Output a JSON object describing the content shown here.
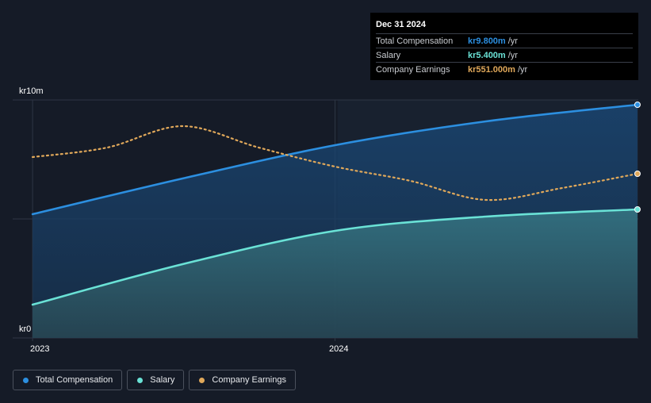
{
  "colors": {
    "total": "#2c8fe0",
    "salary": "#6ae2d6",
    "earnings": "#e0a85a",
    "background": "#151b27"
  },
  "tooltip": {
    "date": "Dec 31 2024",
    "rows": [
      {
        "name": "Total Compensation",
        "value": "kr9.800m",
        "unit": "/yr",
        "color": "#2c8fe0"
      },
      {
        "name": "Salary",
        "value": "kr5.400m",
        "unit": "/yr",
        "color": "#6ae2d6"
      },
      {
        "name": "Company Earnings",
        "value": "kr551.000m",
        "unit": "/yr",
        "color": "#e0a85a"
      }
    ]
  },
  "legend": [
    {
      "label": "Total Compensation",
      "color": "#2c8fe0"
    },
    {
      "label": "Salary",
      "color": "#6ae2d6"
    },
    {
      "label": "Company Earnings",
      "color": "#e0a85a"
    }
  ],
  "chart_data": {
    "type": "area",
    "title": "",
    "xlabel": "",
    "ylabel": "",
    "y_tick_labels": {
      "top": "kr10m",
      "bottom": "kr0"
    },
    "x_tick_labels": [
      "2023",
      "2024"
    ],
    "ylim": [
      0,
      10
    ],
    "xlim": [
      "2022-12-08",
      "2025-01-01"
    ],
    "legend_position": "bottom-left",
    "grid": true,
    "series": [
      {
        "name": "Total Compensation",
        "unit": "kr m",
        "points": [
          [
            "2023-01-01",
            5.2
          ],
          [
            "2023-07-01",
            6.7
          ],
          [
            "2024-01-01",
            8.1
          ],
          [
            "2024-07-01",
            9.1
          ],
          [
            "2024-12-31",
            9.8
          ]
        ]
      },
      {
        "name": "Salary",
        "unit": "kr m",
        "points": [
          [
            "2023-01-01",
            1.4
          ],
          [
            "2023-07-01",
            3.1
          ],
          [
            "2024-01-01",
            4.5
          ],
          [
            "2024-07-01",
            5.1
          ],
          [
            "2024-12-31",
            5.4
          ]
        ]
      },
      {
        "name": "Company Earnings",
        "unit": "relative scale",
        "points": [
          [
            "2023-01-01",
            7.6
          ],
          [
            "2023-04-01",
            8.0
          ],
          [
            "2023-07-01",
            8.9
          ],
          [
            "2023-10-01",
            8.0
          ],
          [
            "2024-01-01",
            7.2
          ],
          [
            "2024-04-01",
            6.6
          ],
          [
            "2024-07-01",
            5.8
          ],
          [
            "2024-10-01",
            6.3
          ],
          [
            "2024-12-31",
            6.9
          ]
        ]
      }
    ]
  }
}
